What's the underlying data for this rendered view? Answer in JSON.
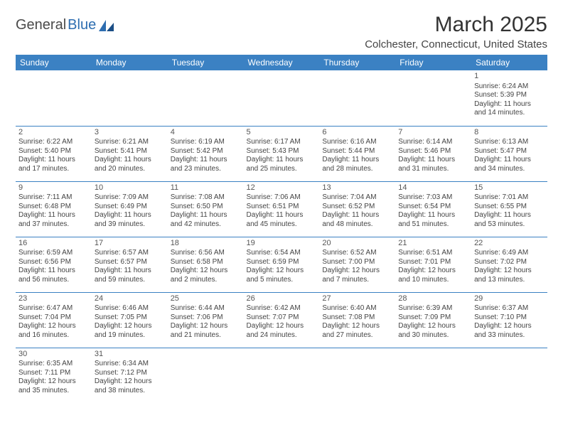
{
  "logo": {
    "text1": "General",
    "text2": "Blue"
  },
  "title": "March 2025",
  "location": "Colchester, Connecticut, United States",
  "colors": {
    "header_bg": "#3b81c3",
    "header_text": "#ffffff",
    "border": "#3b81c3",
    "logo_blue": "#2d6db0",
    "text": "#444444"
  },
  "weekdays": [
    "Sunday",
    "Monday",
    "Tuesday",
    "Wednesday",
    "Thursday",
    "Friday",
    "Saturday"
  ],
  "weeks": [
    [
      null,
      null,
      null,
      null,
      null,
      null,
      {
        "n": "1",
        "sr": "Sunrise: 6:24 AM",
        "ss": "Sunset: 5:39 PM",
        "d1": "Daylight: 11 hours",
        "d2": "and 14 minutes."
      }
    ],
    [
      {
        "n": "2",
        "sr": "Sunrise: 6:22 AM",
        "ss": "Sunset: 5:40 PM",
        "d1": "Daylight: 11 hours",
        "d2": "and 17 minutes."
      },
      {
        "n": "3",
        "sr": "Sunrise: 6:21 AM",
        "ss": "Sunset: 5:41 PM",
        "d1": "Daylight: 11 hours",
        "d2": "and 20 minutes."
      },
      {
        "n": "4",
        "sr": "Sunrise: 6:19 AM",
        "ss": "Sunset: 5:42 PM",
        "d1": "Daylight: 11 hours",
        "d2": "and 23 minutes."
      },
      {
        "n": "5",
        "sr": "Sunrise: 6:17 AM",
        "ss": "Sunset: 5:43 PM",
        "d1": "Daylight: 11 hours",
        "d2": "and 25 minutes."
      },
      {
        "n": "6",
        "sr": "Sunrise: 6:16 AM",
        "ss": "Sunset: 5:44 PM",
        "d1": "Daylight: 11 hours",
        "d2": "and 28 minutes."
      },
      {
        "n": "7",
        "sr": "Sunrise: 6:14 AM",
        "ss": "Sunset: 5:46 PM",
        "d1": "Daylight: 11 hours",
        "d2": "and 31 minutes."
      },
      {
        "n": "8",
        "sr": "Sunrise: 6:13 AM",
        "ss": "Sunset: 5:47 PM",
        "d1": "Daylight: 11 hours",
        "d2": "and 34 minutes."
      }
    ],
    [
      {
        "n": "9",
        "sr": "Sunrise: 7:11 AM",
        "ss": "Sunset: 6:48 PM",
        "d1": "Daylight: 11 hours",
        "d2": "and 37 minutes."
      },
      {
        "n": "10",
        "sr": "Sunrise: 7:09 AM",
        "ss": "Sunset: 6:49 PM",
        "d1": "Daylight: 11 hours",
        "d2": "and 39 minutes."
      },
      {
        "n": "11",
        "sr": "Sunrise: 7:08 AM",
        "ss": "Sunset: 6:50 PM",
        "d1": "Daylight: 11 hours",
        "d2": "and 42 minutes."
      },
      {
        "n": "12",
        "sr": "Sunrise: 7:06 AM",
        "ss": "Sunset: 6:51 PM",
        "d1": "Daylight: 11 hours",
        "d2": "and 45 minutes."
      },
      {
        "n": "13",
        "sr": "Sunrise: 7:04 AM",
        "ss": "Sunset: 6:52 PM",
        "d1": "Daylight: 11 hours",
        "d2": "and 48 minutes."
      },
      {
        "n": "14",
        "sr": "Sunrise: 7:03 AM",
        "ss": "Sunset: 6:54 PM",
        "d1": "Daylight: 11 hours",
        "d2": "and 51 minutes."
      },
      {
        "n": "15",
        "sr": "Sunrise: 7:01 AM",
        "ss": "Sunset: 6:55 PM",
        "d1": "Daylight: 11 hours",
        "d2": "and 53 minutes."
      }
    ],
    [
      {
        "n": "16",
        "sr": "Sunrise: 6:59 AM",
        "ss": "Sunset: 6:56 PM",
        "d1": "Daylight: 11 hours",
        "d2": "and 56 minutes."
      },
      {
        "n": "17",
        "sr": "Sunrise: 6:57 AM",
        "ss": "Sunset: 6:57 PM",
        "d1": "Daylight: 11 hours",
        "d2": "and 59 minutes."
      },
      {
        "n": "18",
        "sr": "Sunrise: 6:56 AM",
        "ss": "Sunset: 6:58 PM",
        "d1": "Daylight: 12 hours",
        "d2": "and 2 minutes."
      },
      {
        "n": "19",
        "sr": "Sunrise: 6:54 AM",
        "ss": "Sunset: 6:59 PM",
        "d1": "Daylight: 12 hours",
        "d2": "and 5 minutes."
      },
      {
        "n": "20",
        "sr": "Sunrise: 6:52 AM",
        "ss": "Sunset: 7:00 PM",
        "d1": "Daylight: 12 hours",
        "d2": "and 7 minutes."
      },
      {
        "n": "21",
        "sr": "Sunrise: 6:51 AM",
        "ss": "Sunset: 7:01 PM",
        "d1": "Daylight: 12 hours",
        "d2": "and 10 minutes."
      },
      {
        "n": "22",
        "sr": "Sunrise: 6:49 AM",
        "ss": "Sunset: 7:02 PM",
        "d1": "Daylight: 12 hours",
        "d2": "and 13 minutes."
      }
    ],
    [
      {
        "n": "23",
        "sr": "Sunrise: 6:47 AM",
        "ss": "Sunset: 7:04 PM",
        "d1": "Daylight: 12 hours",
        "d2": "and 16 minutes."
      },
      {
        "n": "24",
        "sr": "Sunrise: 6:46 AM",
        "ss": "Sunset: 7:05 PM",
        "d1": "Daylight: 12 hours",
        "d2": "and 19 minutes."
      },
      {
        "n": "25",
        "sr": "Sunrise: 6:44 AM",
        "ss": "Sunset: 7:06 PM",
        "d1": "Daylight: 12 hours",
        "d2": "and 21 minutes."
      },
      {
        "n": "26",
        "sr": "Sunrise: 6:42 AM",
        "ss": "Sunset: 7:07 PM",
        "d1": "Daylight: 12 hours",
        "d2": "and 24 minutes."
      },
      {
        "n": "27",
        "sr": "Sunrise: 6:40 AM",
        "ss": "Sunset: 7:08 PM",
        "d1": "Daylight: 12 hours",
        "d2": "and 27 minutes."
      },
      {
        "n": "28",
        "sr": "Sunrise: 6:39 AM",
        "ss": "Sunset: 7:09 PM",
        "d1": "Daylight: 12 hours",
        "d2": "and 30 minutes."
      },
      {
        "n": "29",
        "sr": "Sunrise: 6:37 AM",
        "ss": "Sunset: 7:10 PM",
        "d1": "Daylight: 12 hours",
        "d2": "and 33 minutes."
      }
    ],
    [
      {
        "n": "30",
        "sr": "Sunrise: 6:35 AM",
        "ss": "Sunset: 7:11 PM",
        "d1": "Daylight: 12 hours",
        "d2": "and 35 minutes."
      },
      {
        "n": "31",
        "sr": "Sunrise: 6:34 AM",
        "ss": "Sunset: 7:12 PM",
        "d1": "Daylight: 12 hours",
        "d2": "and 38 minutes."
      },
      null,
      null,
      null,
      null,
      null
    ]
  ]
}
